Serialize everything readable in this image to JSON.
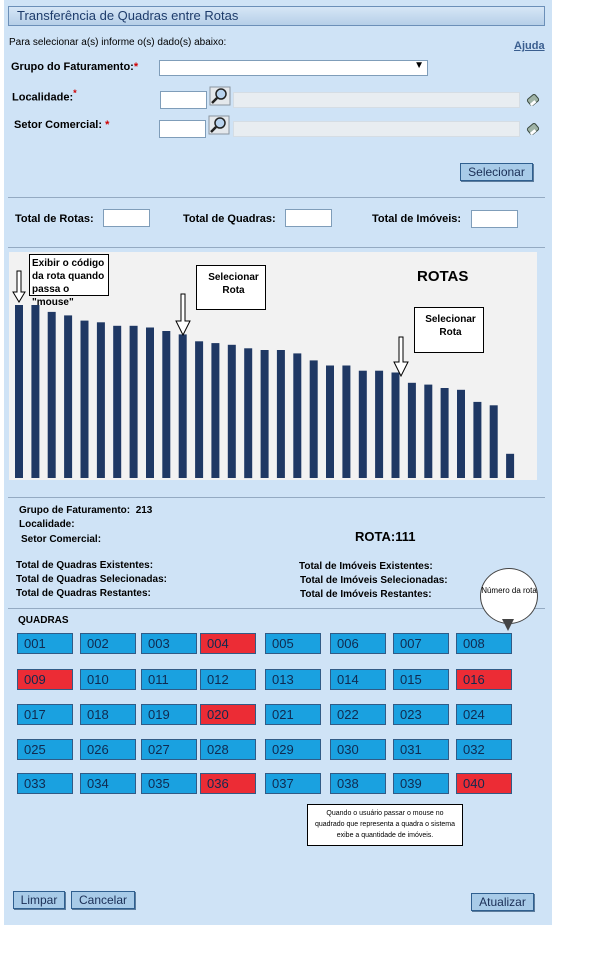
{
  "window": {
    "title": "Transferência de Quadras entre Rotas"
  },
  "intro_text": "Para selecionar a(s) informe o(s) dado(s) abaixo:",
  "help_link": "Ajuda",
  "form": {
    "grupo_label": "Grupo do Faturamento:",
    "localidade_label": "Localidade:",
    "setor_label": "Setor Comercial:",
    "required_mark": "*",
    "grupo_value": "",
    "localidade_value": "",
    "setor_value": ""
  },
  "buttons": {
    "selecionar": "Selecionar",
    "limpar": "Limpar",
    "cancelar": "Cancelar",
    "atualizar": "Atualizar"
  },
  "totals": {
    "rotas_label": "Total de Rotas:",
    "quadras_label": "Total de Quadras:",
    "imoveis_label": "Total de Imóveis:"
  },
  "chart_data": {
    "type": "bar",
    "title": "ROTAS",
    "color": "#1f3864",
    "values": [
      100,
      100,
      96,
      94,
      91,
      90,
      88,
      88,
      87,
      85,
      83,
      79,
      78,
      77,
      75,
      74,
      74,
      72,
      68,
      65,
      65,
      62,
      62,
      61,
      55,
      54,
      52,
      51,
      44,
      42,
      14
    ],
    "ylim": [
      0,
      100
    ]
  },
  "annotations": {
    "hover_note": "Exibir o código da rota quando passa o \"mouse\"",
    "select_note_1": "Selecionar Rota",
    "select_note_2": "Selecionar Rota",
    "bubble_note": "Número da rota",
    "squares_note": "Quando o usuário passar o mouse no quadrado que representa a quadra o sistema exibe a quantidade de imóveis."
  },
  "info": {
    "grupo_label": "Grupo de Faturamento:",
    "grupo_value": "213",
    "localidade_label": "Localidade:",
    "setor_label": "Setor Comercial:",
    "rota_label": "ROTA:",
    "rota_value": "111",
    "quadras_existentes": "Total de Quadras Existentes:",
    "quadras_selecionadas": "Total de Quadras Selecionadas:",
    "quadras_restantes": "Total de Quadras Restantes:",
    "imoveis_existentes": "Total de Imóveis Existentes:",
    "imoveis_selecionados": "Total de Imóveis Selecionadas:",
    "imoveis_restantes": "Total de Imóveis Restantes:"
  },
  "quadras": {
    "title": "QUADRAS",
    "colors": {
      "normal": "#1aa1e0",
      "selected": "#ec2c35"
    },
    "items": [
      {
        "code": "001",
        "state": "normal"
      },
      {
        "code": "002",
        "state": "normal"
      },
      {
        "code": "003",
        "state": "normal"
      },
      {
        "code": "004",
        "state": "selected"
      },
      {
        "code": "005",
        "state": "normal"
      },
      {
        "code": "006",
        "state": "normal"
      },
      {
        "code": "007",
        "state": "normal"
      },
      {
        "code": "008",
        "state": "normal"
      },
      {
        "code": "009",
        "state": "selected"
      },
      {
        "code": "010",
        "state": "normal"
      },
      {
        "code": "011",
        "state": "normal"
      },
      {
        "code": "012",
        "state": "normal"
      },
      {
        "code": "013",
        "state": "normal"
      },
      {
        "code": "014",
        "state": "normal"
      },
      {
        "code": "015",
        "state": "normal"
      },
      {
        "code": "016",
        "state": "selected"
      },
      {
        "code": "017",
        "state": "normal"
      },
      {
        "code": "018",
        "state": "normal"
      },
      {
        "code": "019",
        "state": "normal"
      },
      {
        "code": "020",
        "state": "selected"
      },
      {
        "code": "021",
        "state": "normal"
      },
      {
        "code": "022",
        "state": "normal"
      },
      {
        "code": "023",
        "state": "normal"
      },
      {
        "code": "024",
        "state": "normal"
      },
      {
        "code": "025",
        "state": "normal"
      },
      {
        "code": "026",
        "state": "normal"
      },
      {
        "code": "027",
        "state": "normal"
      },
      {
        "code": "028",
        "state": "normal"
      },
      {
        "code": "029",
        "state": "normal"
      },
      {
        "code": "030",
        "state": "normal"
      },
      {
        "code": "031",
        "state": "normal"
      },
      {
        "code": "032",
        "state": "normal"
      },
      {
        "code": "033",
        "state": "normal"
      },
      {
        "code": "034",
        "state": "normal"
      },
      {
        "code": "035",
        "state": "normal"
      },
      {
        "code": "036",
        "state": "selected"
      },
      {
        "code": "037",
        "state": "normal"
      },
      {
        "code": "038",
        "state": "normal"
      },
      {
        "code": "039",
        "state": "normal"
      },
      {
        "code": "040",
        "state": "selected"
      }
    ]
  }
}
